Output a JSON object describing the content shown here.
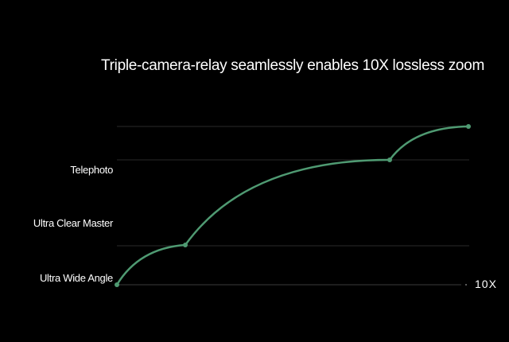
{
  "chart_data": {
    "type": "line",
    "title": "Triple-camera-relay seamlessly enables 10X lossless zoom",
    "y_tick_labels": [
      "Ultra Wide Angle",
      "Ultra Clear Master",
      "Telephoto"
    ],
    "x_end_label": "10X",
    "grid": true,
    "line_color": "#4f9a72",
    "gridline_color": "#2a2a2a"
  }
}
